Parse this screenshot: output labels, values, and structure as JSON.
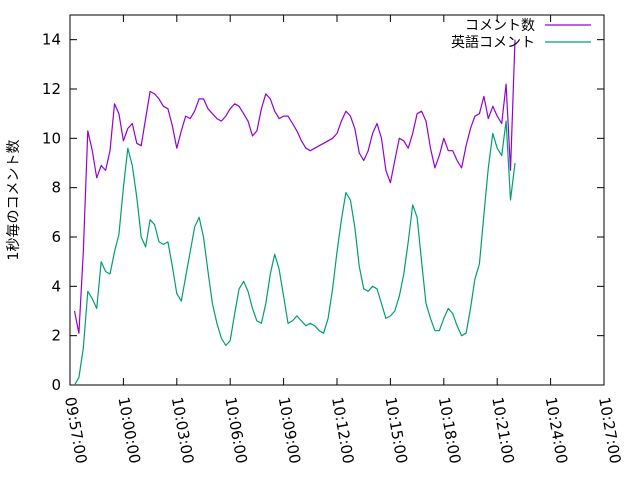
{
  "chart_data": {
    "type": "line",
    "title": "",
    "xlabel": "",
    "ylabel": "1秒毎のコメント数",
    "ylim": [
      0,
      15
    ],
    "yticks": [
      "0",
      "2",
      "4",
      "6",
      "8",
      "10",
      "12",
      "14"
    ],
    "xlim": [
      "09:57:00",
      "10:27:00"
    ],
    "xticks": [
      "09:57:00",
      "10:00:00",
      "10:03:00",
      "10:06:00",
      "10:09:00",
      "10:12:00",
      "10:15:00",
      "10:18:00",
      "10:21:00",
      "10:24:00",
      "10:27:00"
    ],
    "grid": false,
    "legend_position": "top-right",
    "series": [
      {
        "name": "コメント数",
        "color": "#9400d3",
        "points": [
          [
            "09:57:15",
            3.0
          ],
          [
            "09:57:30",
            2.1
          ],
          [
            "09:57:45",
            5.4
          ],
          [
            "09:58:00",
            10.3
          ],
          [
            "09:58:15",
            9.5
          ],
          [
            "09:58:30",
            8.4
          ],
          [
            "09:58:45",
            8.9
          ],
          [
            "09:59:00",
            8.7
          ],
          [
            "09:59:15",
            9.5
          ],
          [
            "09:59:30",
            11.4
          ],
          [
            "09:59:45",
            11.0
          ],
          [
            "10:00:00",
            9.9
          ],
          [
            "10:00:15",
            10.4
          ],
          [
            "10:00:30",
            10.6
          ],
          [
            "10:00:45",
            9.8
          ],
          [
            "10:01:00",
            9.7
          ],
          [
            "10:01:15",
            10.8
          ],
          [
            "10:01:30",
            11.9
          ],
          [
            "10:01:45",
            11.8
          ],
          [
            "10:02:00",
            11.6
          ],
          [
            "10:02:15",
            11.3
          ],
          [
            "10:02:30",
            11.2
          ],
          [
            "10:02:45",
            10.5
          ],
          [
            "10:03:00",
            9.6
          ],
          [
            "10:03:15",
            10.3
          ],
          [
            "10:03:30",
            10.9
          ],
          [
            "10:03:45",
            10.8
          ],
          [
            "10:04:00",
            11.1
          ],
          [
            "10:04:15",
            11.6
          ],
          [
            "10:04:30",
            11.6
          ],
          [
            "10:04:45",
            11.2
          ],
          [
            "10:05:00",
            11.0
          ],
          [
            "10:05:15",
            10.8
          ],
          [
            "10:05:30",
            10.7
          ],
          [
            "10:05:45",
            10.9
          ],
          [
            "10:06:00",
            11.2
          ],
          [
            "10:06:15",
            11.4
          ],
          [
            "10:06:30",
            11.3
          ],
          [
            "10:06:45",
            11.0
          ],
          [
            "10:07:00",
            10.7
          ],
          [
            "10:07:15",
            10.1
          ],
          [
            "10:07:30",
            10.3
          ],
          [
            "10:07:45",
            11.2
          ],
          [
            "10:08:00",
            11.8
          ],
          [
            "10:08:15",
            11.6
          ],
          [
            "10:08:30",
            11.1
          ],
          [
            "10:08:45",
            10.8
          ],
          [
            "10:09:00",
            10.9
          ],
          [
            "10:09:15",
            10.9
          ],
          [
            "10:09:30",
            10.6
          ],
          [
            "10:09:45",
            10.3
          ],
          [
            "10:10:00",
            9.9
          ],
          [
            "10:10:15",
            9.6
          ],
          [
            "10:10:30",
            9.5
          ],
          [
            "10:10:45",
            9.6
          ],
          [
            "10:11:00",
            9.7
          ],
          [
            "10:11:15",
            9.8
          ],
          [
            "10:11:30",
            9.9
          ],
          [
            "10:11:45",
            10.0
          ],
          [
            "10:12:00",
            10.2
          ],
          [
            "10:12:15",
            10.7
          ],
          [
            "10:12:30",
            11.1
          ],
          [
            "10:12:45",
            10.9
          ],
          [
            "10:13:00",
            10.4
          ],
          [
            "10:13:15",
            9.4
          ],
          [
            "10:13:30",
            9.1
          ],
          [
            "10:13:45",
            9.5
          ],
          [
            "10:14:00",
            10.2
          ],
          [
            "10:14:15",
            10.6
          ],
          [
            "10:14:30",
            10.0
          ],
          [
            "10:14:45",
            8.7
          ],
          [
            "10:15:00",
            8.2
          ],
          [
            "10:15:15",
            9.1
          ],
          [
            "10:15:30",
            10.0
          ],
          [
            "10:15:45",
            9.9
          ],
          [
            "10:16:00",
            9.6
          ],
          [
            "10:16:15",
            10.2
          ],
          [
            "10:16:30",
            11.0
          ],
          [
            "10:16:45",
            11.1
          ],
          [
            "10:17:00",
            10.7
          ],
          [
            "10:17:15",
            9.6
          ],
          [
            "10:17:30",
            8.8
          ],
          [
            "10:17:45",
            9.3
          ],
          [
            "10:18:00",
            10.0
          ],
          [
            "10:18:15",
            9.5
          ],
          [
            "10:18:30",
            9.5
          ],
          [
            "10:18:45",
            9.1
          ],
          [
            "10:19:00",
            8.8
          ],
          [
            "10:19:15",
            9.7
          ],
          [
            "10:19:30",
            10.4
          ],
          [
            "10:19:45",
            10.9
          ],
          [
            "10:20:00",
            11.0
          ],
          [
            "10:20:15",
            11.7
          ],
          [
            "10:20:30",
            10.8
          ],
          [
            "10:20:45",
            11.3
          ],
          [
            "10:21:00",
            10.9
          ],
          [
            "10:21:15",
            10.6
          ],
          [
            "10:21:30",
            12.2
          ],
          [
            "10:21:45",
            8.7
          ],
          [
            "10:22:00",
            14.0
          ]
        ]
      },
      {
        "name": "英語コメント",
        "color": "#009e73",
        "points": [
          [
            "09:57:15",
            0.0
          ],
          [
            "09:57:30",
            0.3
          ],
          [
            "09:57:45",
            1.5
          ],
          [
            "09:58:00",
            3.8
          ],
          [
            "09:58:15",
            3.5
          ],
          [
            "09:58:30",
            3.1
          ],
          [
            "09:58:45",
            5.0
          ],
          [
            "09:59:00",
            4.6
          ],
          [
            "09:59:15",
            4.5
          ],
          [
            "09:59:30",
            5.4
          ],
          [
            "09:59:45",
            6.1
          ],
          [
            "10:00:00",
            8.0
          ],
          [
            "10:00:15",
            9.6
          ],
          [
            "10:00:30",
            8.9
          ],
          [
            "10:00:45",
            7.6
          ],
          [
            "10:01:00",
            6.0
          ],
          [
            "10:01:15",
            5.6
          ],
          [
            "10:01:30",
            6.7
          ],
          [
            "10:01:45",
            6.5
          ],
          [
            "10:02:00",
            5.8
          ],
          [
            "10:02:15",
            5.7
          ],
          [
            "10:02:30",
            5.8
          ],
          [
            "10:02:45",
            4.8
          ],
          [
            "10:03:00",
            3.7
          ],
          [
            "10:03:15",
            3.4
          ],
          [
            "10:03:30",
            4.4
          ],
          [
            "10:03:45",
            5.4
          ],
          [
            "10:04:00",
            6.4
          ],
          [
            "10:04:15",
            6.8
          ],
          [
            "10:04:30",
            6.0
          ],
          [
            "10:04:45",
            4.6
          ],
          [
            "10:05:00",
            3.3
          ],
          [
            "10:05:15",
            2.5
          ],
          [
            "10:05:30",
            1.9
          ],
          [
            "10:05:45",
            1.6
          ],
          [
            "10:06:00",
            1.8
          ],
          [
            "10:06:15",
            2.9
          ],
          [
            "10:06:30",
            3.9
          ],
          [
            "10:06:45",
            4.2
          ],
          [
            "10:07:00",
            3.8
          ],
          [
            "10:07:15",
            3.1
          ],
          [
            "10:07:30",
            2.6
          ],
          [
            "10:07:45",
            2.5
          ],
          [
            "10:08:00",
            3.3
          ],
          [
            "10:08:15",
            4.5
          ],
          [
            "10:08:30",
            5.3
          ],
          [
            "10:08:45",
            4.7
          ],
          [
            "10:09:00",
            3.6
          ],
          [
            "10:09:15",
            2.5
          ],
          [
            "10:09:30",
            2.6
          ],
          [
            "10:09:45",
            2.8
          ],
          [
            "10:10:00",
            2.6
          ],
          [
            "10:10:15",
            2.4
          ],
          [
            "10:10:30",
            2.5
          ],
          [
            "10:10:45",
            2.4
          ],
          [
            "10:11:00",
            2.2
          ],
          [
            "10:11:15",
            2.1
          ],
          [
            "10:11:30",
            2.7
          ],
          [
            "10:11:45",
            3.9
          ],
          [
            "10:12:00",
            5.4
          ],
          [
            "10:12:15",
            6.7
          ],
          [
            "10:12:30",
            7.8
          ],
          [
            "10:12:45",
            7.5
          ],
          [
            "10:13:00",
            6.4
          ],
          [
            "10:13:15",
            4.8
          ],
          [
            "10:13:30",
            3.9
          ],
          [
            "10:13:45",
            3.8
          ],
          [
            "10:14:00",
            4.0
          ],
          [
            "10:14:15",
            3.9
          ],
          [
            "10:14:30",
            3.3
          ],
          [
            "10:14:45",
            2.7
          ],
          [
            "10:15:00",
            2.8
          ],
          [
            "10:15:15",
            3.0
          ],
          [
            "10:15:30",
            3.6
          ],
          [
            "10:15:45",
            4.5
          ],
          [
            "10:16:00",
            5.8
          ],
          [
            "10:16:15",
            7.3
          ],
          [
            "10:16:30",
            6.8
          ],
          [
            "10:16:45",
            5.0
          ],
          [
            "10:17:00",
            3.3
          ],
          [
            "10:17:15",
            2.7
          ],
          [
            "10:17:30",
            2.2
          ],
          [
            "10:17:45",
            2.2
          ],
          [
            "10:18:00",
            2.7
          ],
          [
            "10:18:15",
            3.1
          ],
          [
            "10:18:30",
            2.9
          ],
          [
            "10:18:45",
            2.4
          ],
          [
            "10:19:00",
            2.0
          ],
          [
            "10:19:15",
            2.1
          ],
          [
            "10:19:30",
            3.1
          ],
          [
            "10:19:45",
            4.3
          ],
          [
            "10:20:00",
            4.9
          ],
          [
            "10:20:15",
            6.9
          ],
          [
            "10:20:30",
            8.8
          ],
          [
            "10:20:45",
            10.2
          ],
          [
            "10:21:00",
            9.6
          ],
          [
            "10:21:15",
            9.3
          ],
          [
            "10:21:30",
            10.7
          ],
          [
            "10:21:45",
            7.5
          ],
          [
            "10:22:00",
            9.0
          ]
        ]
      }
    ]
  }
}
